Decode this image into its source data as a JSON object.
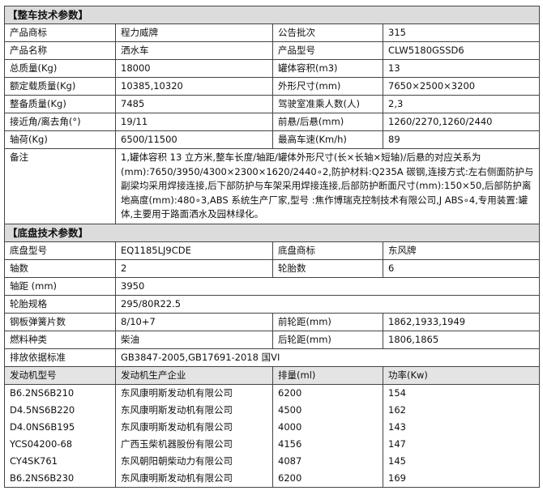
{
  "vehicle_section": {
    "title": "【整车技术参数】",
    "rows": [
      [
        "产品商标",
        "程力威牌",
        "公告批次",
        "315"
      ],
      [
        "产品名称",
        "洒水车",
        "产品型号",
        "CLW5180GSSD6"
      ],
      [
        "总质量(Kg)",
        "18000",
        "罐体容积(m3)",
        "13"
      ],
      [
        "额定载质量(Kg)",
        "10385,10320",
        "外形尺寸(mm)",
        "7650×2500×3200"
      ],
      [
        "整备质量(Kg)",
        "7485",
        "驾驶室准乘人数(人)",
        "2,3"
      ],
      [
        "接近角/离去角(°)",
        "19/11",
        "前悬/后悬(mm)",
        "1260/2270,1260/2440"
      ],
      [
        "轴荷(Kg)",
        "6500/11500",
        "最高车速(Km/h)",
        "89"
      ]
    ],
    "remark_label": "备注",
    "remark": "1,罐体容积 13 立方米,整车长度/轴距/罐体外形尺寸(长×长轴×短轴)/后悬的对应关系为(mm):7650/3950/4300×2300×1620/2440∘2,防护材料:Q235A 碳钢,连接方式:左右侧面防护与副梁均采用焊接连接,后下部防护与车架采用焊接连接,后部防护断面尺寸(mm):150×50,后部防护离地高度(mm):480∘3,ABS 系统生产厂家,型号 :焦作博瑞克控制技术有限公司,J ABS∘4,专用装置:罐体,主要用于路面洒水及园林绿化。"
  },
  "chassis_section": {
    "title": "【底盘技术参数】",
    "rows": [
      [
        "底盘型号",
        "EQ1185LJ9CDE",
        "底盘商标",
        "东风牌"
      ],
      [
        "轴数",
        "2",
        "轮胎数",
        "6"
      ],
      [
        "轴距 (mm)",
        "3950"
      ],
      [
        "轮胎规格",
        "295/80R22.5"
      ],
      [
        "钢板弹簧片数",
        "8/10+7",
        "前轮距(mm)",
        "1862,1933,1949"
      ],
      [
        "燃料种类",
        "柴油",
        "后轮距(mm)",
        "1806,1865"
      ],
      [
        "排放依据标准",
        "GB3847-2005,GB17691-2018 国VI"
      ]
    ]
  },
  "engines": {
    "headers": [
      "发动机型号",
      "发动机生产企业",
      "排量(ml)",
      "功率(Kw)"
    ],
    "rows": [
      [
        "B6.2NS6B210",
        "东风康明斯发动机有限公司",
        "6200",
        "154"
      ],
      [
        "D4.5NS6B220",
        "东风康明斯发动机有限公司",
        "4500",
        "162"
      ],
      [
        "D4.0NS6B195",
        "东风康明斯发动机有限公司",
        "4000",
        "143"
      ],
      [
        "YCS04200-68",
        "广西玉柴机器股份有限公司",
        "4156",
        "147"
      ],
      [
        "CY4SK761",
        "东风朝阳朝柴动力有限公司",
        "4087",
        "145"
      ],
      [
        "B6.2NS6B230",
        "东风康明斯发动机有限公司",
        "6200",
        "169"
      ]
    ]
  }
}
